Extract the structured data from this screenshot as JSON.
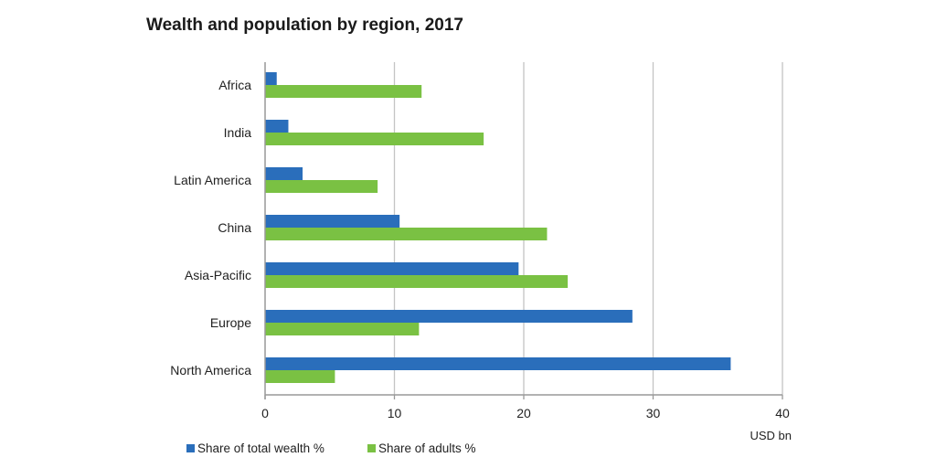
{
  "chart_data": {
    "type": "bar",
    "orientation": "horizontal",
    "title": "Wealth and population by region, 2017",
    "xlabel": "USD bn",
    "ylabel": "",
    "xlim": [
      0,
      40
    ],
    "xticks": [
      0,
      10,
      20,
      30,
      40
    ],
    "grid": true,
    "legend_position": "bottom-left",
    "categories": [
      "Africa",
      "India",
      "Latin America",
      "China",
      "Asia-Pacific",
      "Europe",
      "North America"
    ],
    "series": [
      {
        "name": "Share of total wealth %",
        "color": "#2a6ebb",
        "values": [
          0.9,
          1.8,
          2.9,
          10.4,
          19.6,
          28.4,
          36.0
        ]
      },
      {
        "name": "Share of adults %",
        "color": "#7ac143",
        "values": [
          12.1,
          16.9,
          8.7,
          21.8,
          23.4,
          11.9,
          5.4
        ]
      }
    ]
  }
}
